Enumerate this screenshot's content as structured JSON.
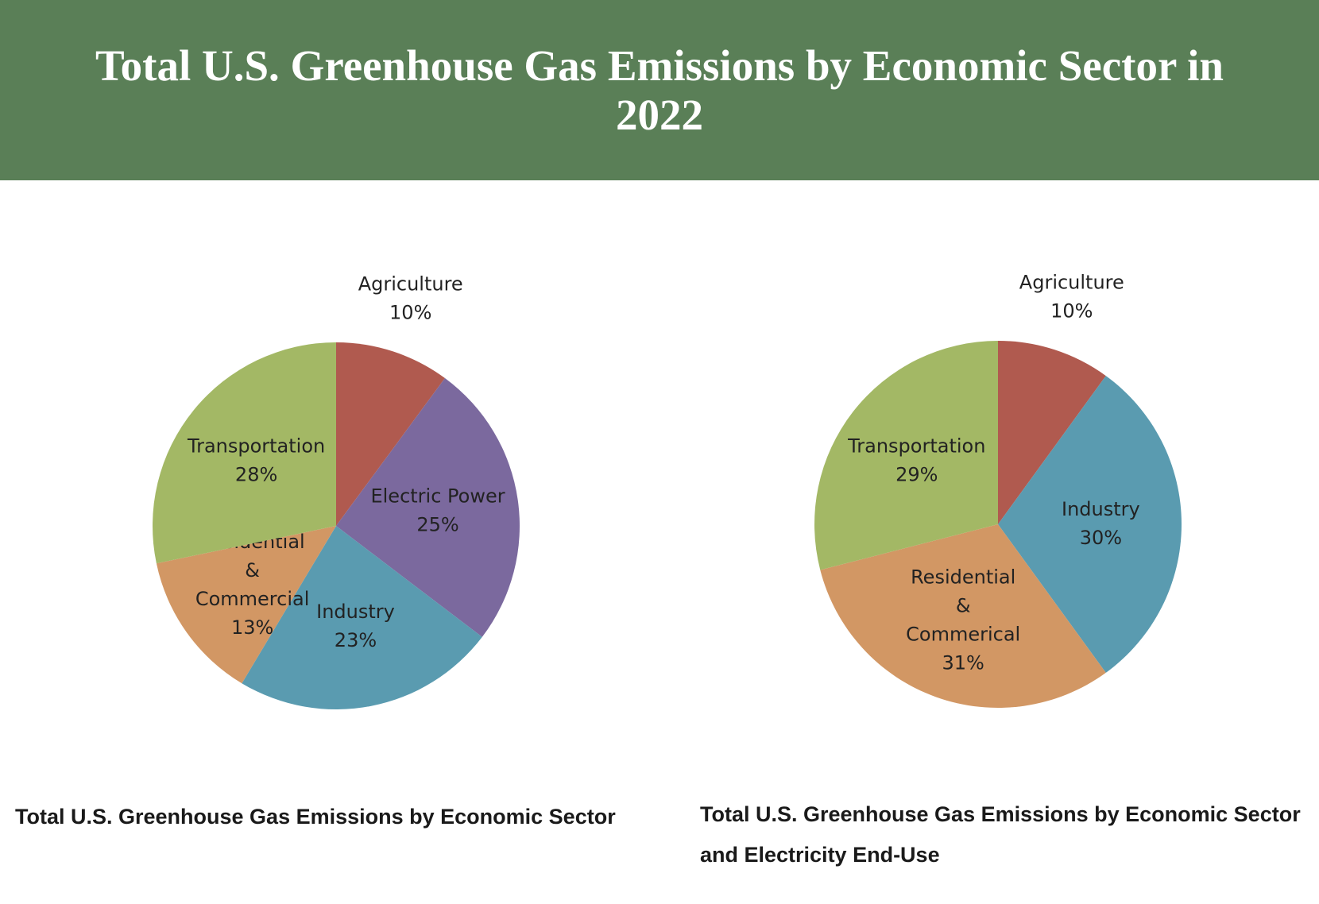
{
  "header": {
    "title": "Total U.S. Greenhouse Gas Emissions by Economic Sector in 2022"
  },
  "chart_data": [
    {
      "type": "pie",
      "caption": "Total U.S. Greenhouse Gas Emissions by Economic Sector",
      "categories": [
        "Agriculture",
        "Electric Power",
        "Industry",
        "Residential & Commercial",
        "Transportation"
      ],
      "values": [
        10,
        25,
        23,
        13,
        28
      ],
      "value_labels": [
        "10%",
        "25%",
        "23%",
        "13%",
        "28%"
      ],
      "colors": [
        "#b05a4f",
        "#7b699e",
        "#5a9bb0",
        "#d29764",
        "#a3b865"
      ]
    },
    {
      "type": "pie",
      "caption": "Total U.S. Greenhouse Gas Emissions by Economic Sector and Electricity End-Use",
      "categories": [
        "Agriculture",
        "Industry",
        "Residential & Commerical",
        "Transportation"
      ],
      "values": [
        10,
        30,
        31,
        29
      ],
      "value_labels": [
        "10%",
        "30%",
        "31%",
        "29%"
      ],
      "colors": [
        "#b05a4f",
        "#5a9bb0",
        "#d29764",
        "#a3b865"
      ]
    }
  ]
}
